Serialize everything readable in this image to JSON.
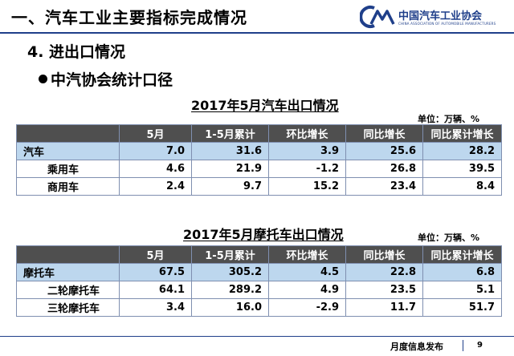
{
  "header": {
    "title": "一、汽车工业主要指标完成情况",
    "logo_cn": "中国汽车工业协会",
    "logo_en": "CHINA ASSOCIATION OF AUTOMOBILE MANUFACTURERS",
    "accent_color": "#1f3f8a"
  },
  "section": "4. 进出口情况",
  "bullet": "中汽协会统计口径",
  "car_table": {
    "title": "2017年5月汽车出口情况",
    "unit": "单位：万辆、%",
    "columns": [
      "",
      "5月",
      "1-5月累计",
      "环比增长",
      "同比增长",
      "同比累计增长"
    ],
    "rows": [
      {
        "label": "汽车",
        "values": [
          "7.0",
          "31.6",
          "3.9",
          "25.6",
          "28.2"
        ],
        "highlight": true
      },
      {
        "label": "乘用车",
        "values": [
          "4.6",
          "21.9",
          "-1.2",
          "26.8",
          "39.5"
        ],
        "highlight": false
      },
      {
        "label": "商用车",
        "values": [
          "2.4",
          "9.7",
          "15.2",
          "23.4",
          "8.4"
        ],
        "highlight": false
      }
    ]
  },
  "moto_table": {
    "title": "2017年5月摩托车出口情况",
    "unit": "单位：万辆、%",
    "columns": [
      "",
      "5月",
      "1-5月累计",
      "环比增长",
      "同比增长",
      "同比累计增长"
    ],
    "rows": [
      {
        "label": "摩托车",
        "values": [
          "67.5",
          "305.2",
          "4.5",
          "22.8",
          "6.8"
        ],
        "highlight": true
      },
      {
        "label": "二轮摩托车",
        "values": [
          "64.1",
          "289.2",
          "4.9",
          "23.5",
          "5.1"
        ],
        "highlight": false
      },
      {
        "label": "三轮摩托车",
        "values": [
          "3.4",
          "16.0",
          "-2.9",
          "11.7",
          "51.7"
        ],
        "highlight": false
      }
    ]
  },
  "footer": {
    "label": "月度信息发布",
    "page": "9"
  }
}
